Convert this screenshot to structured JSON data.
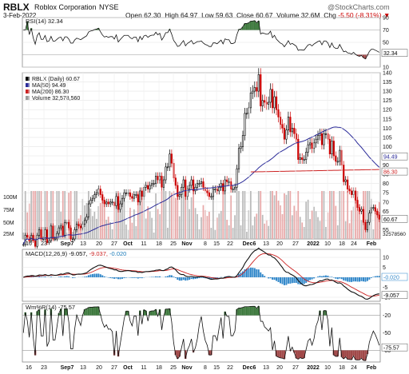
{
  "header": {
    "ticker": "RBLX",
    "company": "Roblox Corporation",
    "exchange": "NYSE",
    "date": "3-Feb-2022",
    "watermark": "@StockCharts.com",
    "open_label": "Open",
    "open": "62.30",
    "high_label": "High",
    "high": "64.97",
    "low_label": "Low",
    "low": "59.63",
    "close_label": "Close",
    "close": "60.67",
    "volume_label": "Volume",
    "volume": "32.6M",
    "chg_label": "Chg",
    "chg": "-5.50 (-8.31%)",
    "chg_color": "#cc0000"
  },
  "chart_data": {
    "type": "candlestick-with-indicators",
    "x_labels": [
      "16",
      "23",
      "Sep7",
      "13",
      "20",
      "27",
      "Oct",
      "11",
      "18",
      "25",
      "Nov",
      "8",
      "15",
      "22",
      "Dec6",
      "13",
      "20",
      "27",
      "2022",
      "10",
      "18",
      "24",
      "Feb"
    ],
    "closes": [
      47,
      52,
      51,
      49,
      52,
      49,
      46,
      52,
      55,
      50,
      50,
      55,
      48,
      49,
      57,
      50,
      50,
      53,
      56,
      57,
      52,
      59,
      59,
      56,
      50,
      50,
      55,
      58,
      57,
      56,
      58,
      60,
      62,
      69,
      71,
      72,
      74,
      75,
      77,
      74,
      71,
      69,
      70,
      69,
      70,
      70,
      68,
      73,
      66,
      69,
      72,
      75,
      75,
      75,
      73,
      72,
      74,
      74,
      70,
      76,
      73,
      78,
      79,
      77,
      79,
      80,
      80,
      84,
      82,
      84,
      78,
      82,
      89,
      89,
      96,
      91,
      83,
      79,
      73,
      74,
      78,
      82,
      73,
      77,
      79,
      82,
      76,
      78,
      80,
      80,
      81,
      78,
      76,
      75,
      73,
      73,
      77,
      77,
      76,
      78,
      80,
      76,
      82,
      81,
      81,
      77,
      77,
      78,
      88,
      99,
      100,
      106,
      118,
      118,
      121,
      129,
      130,
      132,
      130,
      139,
      122,
      125,
      124,
      123,
      124,
      131,
      121,
      127,
      120,
      116,
      112,
      110,
      104,
      109,
      116,
      108,
      110,
      107,
      104,
      93,
      94,
      93,
      93,
      97,
      101,
      102,
      99,
      102,
      104,
      106,
      107,
      101,
      107,
      107,
      104,
      96,
      103,
      95,
      92,
      92,
      98,
      90,
      81,
      82,
      77,
      76,
      74,
      76,
      71,
      67,
      65,
      66,
      59,
      55,
      59,
      64,
      67,
      67,
      65,
      63,
      60.67
    ],
    "price_axis": {
      "min": 50,
      "max": 140,
      "ticks": [
        55,
        60,
        65,
        70,
        75,
        80,
        85,
        90,
        95,
        100,
        105,
        110,
        115,
        120,
        125,
        130,
        135,
        140
      ]
    },
    "last_price_label": "60.67",
    "ma50_label": "94.49",
    "ma200_label": "86.30",
    "volume_axis_labels": [
      "100M",
      "75M",
      "50M",
      "25M"
    ],
    "last_volume_label": "32578560",
    "price_legend": [
      {
        "label": "RBLX (Daily) 60.67",
        "color": "#000000"
      },
      {
        "label": "MA(50) 94.49",
        "color": "#2b2b99"
      },
      {
        "label": "MA(200) 86.30",
        "color": "#cc2222"
      },
      {
        "label": "Volume 32,578,560",
        "color": "#999999"
      }
    ],
    "rsi": {
      "legend": "RSI(14) 32.34",
      "ticks": [
        "90",
        "70",
        "50",
        "30",
        "10"
      ],
      "last_label": "32.34",
      "min": 10,
      "max": 90
    },
    "macd": {
      "legend": "MACD(12,26,9) -9.057, -9.037, -0.020",
      "legend_prefix": "MACD(12,26,9) ",
      "legend_values": [
        "-9.057",
        "-9.037",
        "-0.020"
      ],
      "legend_colors": [
        "#000000",
        "#cc2222",
        "#1a7ab8"
      ],
      "ticks": [
        "10",
        "5",
        "0",
        "-5",
        "-10"
      ],
      "hist_label": "-0.020",
      "last_label": "-9.057",
      "min": -12,
      "max": 14
    },
    "willr": {
      "legend": "Wm%R(14) -75.57",
      "ticks": [
        "-20",
        "-50",
        "-80"
      ],
      "last_label": "-75.57",
      "min": -100,
      "max": 0
    }
  },
  "colors": {
    "up": "#000000",
    "down": "#cc0000",
    "ma50": "#2b2b99",
    "ma200": "#cc2222",
    "signal": "#cc2222",
    "hist": "#2f86c9",
    "green_fill": "#3f7a3f",
    "red_fill": "#a04848",
    "volume": "#bbbbbb",
    "grid": "#e4e4e4"
  }
}
